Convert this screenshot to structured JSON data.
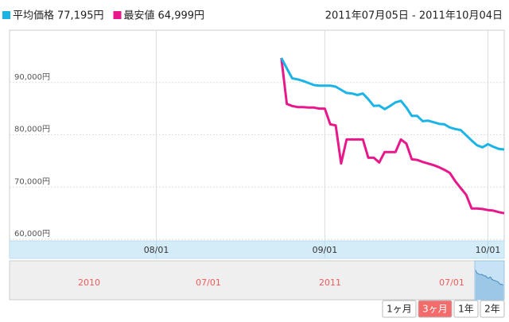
{
  "chart_data": {
    "type": "line",
    "date_range": "2011年07月05日 - 2011年10月04日",
    "x": [
      "08/24",
      "08/25",
      "08/26",
      "08/27",
      "08/28",
      "08/29",
      "08/30",
      "08/31",
      "09/01",
      "09/02",
      "09/03",
      "09/04",
      "09/05",
      "09/06",
      "09/07",
      "09/08",
      "09/09",
      "09/10",
      "09/11",
      "09/12",
      "09/13",
      "09/14",
      "09/15",
      "09/16",
      "09/17",
      "09/18",
      "09/19",
      "09/20",
      "09/21",
      "09/22",
      "09/23",
      "09/24",
      "09/25",
      "09/26",
      "09/27",
      "09/28",
      "09/29",
      "09/30",
      "10/01",
      "10/02",
      "10/03",
      "10/04"
    ],
    "series": [
      {
        "name": "平均価格",
        "legend_value": "77,195円",
        "color": "#1cb4e6",
        "values": [
          94700,
          92700,
          90800,
          90600,
          90300,
          89900,
          89500,
          89400,
          89400,
          89400,
          89200,
          88600,
          88000,
          87900,
          87600,
          87900,
          86800,
          85500,
          85600,
          84900,
          85500,
          86200,
          86500,
          85200,
          83600,
          83600,
          82600,
          82700,
          82400,
          82100,
          82000,
          81400,
          81100,
          80900,
          79900,
          78900,
          78000,
          77600,
          78200,
          77700,
          77300,
          77195
        ]
      },
      {
        "name": "最安値",
        "legend_value": "64,999円",
        "color": "#e8178a",
        "values": [
          94700,
          85900,
          85500,
          85300,
          85300,
          85200,
          85200,
          85000,
          85000,
          82000,
          81800,
          74500,
          79100,
          79100,
          79100,
          79100,
          75600,
          75600,
          74700,
          76700,
          76700,
          76700,
          79100,
          78300,
          75300,
          75200,
          74800,
          74500,
          74200,
          73800,
          73300,
          72700,
          71100,
          69800,
          68500,
          65900,
          65900,
          65800,
          65600,
          65500,
          65200,
          64999
        ]
      }
    ],
    "xlim": [
      "07/05",
      "10/04"
    ],
    "xticks": [
      "08/01",
      "09/01",
      "10/01"
    ],
    "ylim": [
      59700,
      100000
    ],
    "yticks": [
      {
        "value": 60000,
        "label": "60,000円"
      },
      {
        "value": 70000,
        "label": "70,000円"
      },
      {
        "value": 80000,
        "label": "80,000円"
      },
      {
        "value": 90000,
        "label": "90,000円"
      }
    ],
    "grid": true,
    "navigator_labels": [
      "2010",
      "07/01",
      "2011",
      "07/01"
    ],
    "range_buttons": [
      "1ヶ月",
      "3ヶ月",
      "1年",
      "2年"
    ],
    "selected_button": 1
  }
}
